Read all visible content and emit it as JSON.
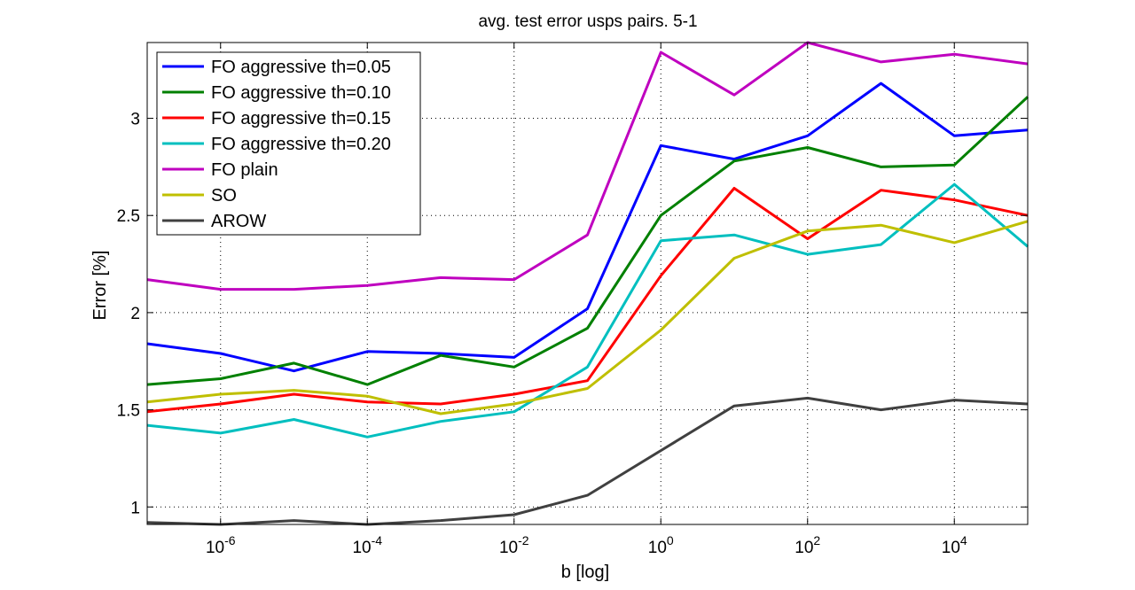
{
  "chart_data": {
    "type": "line",
    "title": "avg. test error usps pairs. 5-1",
    "xlabel": "b [log]",
    "ylabel": "Error [%]",
    "x_scale": "log",
    "x": [
      1e-07,
      1e-06,
      1e-05,
      0.0001,
      0.001,
      0.01,
      0.1,
      1.0,
      10.0,
      100.0,
      1000.0,
      10000.0,
      100000.0
    ],
    "xlim": [
      1e-07,
      100000.0
    ],
    "ylim": [
      0.91,
      3.39
    ],
    "x_ticks": [
      {
        "base": "10",
        "exp": "-6",
        "value": 1e-06
      },
      {
        "base": "10",
        "exp": "-4",
        "value": 0.0001
      },
      {
        "base": "10",
        "exp": "-2",
        "value": 0.01
      },
      {
        "base": "10",
        "exp": "0",
        "value": 1
      },
      {
        "base": "10",
        "exp": "2",
        "value": 100
      },
      {
        "base": "10",
        "exp": "4",
        "value": 10000
      }
    ],
    "y_ticks": [
      "1",
      "1.5",
      "2",
      "2.5",
      "3"
    ],
    "grid": true,
    "legend_position": "top-left",
    "series": [
      {
        "name": "FO aggressive th=0.05",
        "color": "#0000ff",
        "values": [
          1.84,
          1.79,
          1.7,
          1.8,
          1.79,
          1.77,
          2.02,
          2.86,
          2.79,
          2.91,
          3.18,
          2.91,
          2.94
        ]
      },
      {
        "name": "FO aggressive th=0.10",
        "color": "#008000",
        "values": [
          1.63,
          1.66,
          1.74,
          1.63,
          1.78,
          1.72,
          1.92,
          2.5,
          2.78,
          2.85,
          2.75,
          2.76,
          3.11
        ]
      },
      {
        "name": "FO aggressive th=0.15",
        "color": "#ff0000",
        "values": [
          1.49,
          1.53,
          1.58,
          1.54,
          1.53,
          1.58,
          1.65,
          2.19,
          2.64,
          2.38,
          2.63,
          2.58,
          2.5
        ]
      },
      {
        "name": "FO aggressive th=0.20",
        "color": "#00bfbf",
        "values": [
          1.42,
          1.38,
          1.45,
          1.36,
          1.44,
          1.49,
          1.72,
          2.37,
          2.4,
          2.3,
          2.35,
          2.66,
          2.34
        ]
      },
      {
        "name": "FO plain",
        "color": "#bf00bf",
        "values": [
          2.17,
          2.12,
          2.12,
          2.14,
          2.18,
          2.17,
          2.4,
          3.34,
          3.12,
          3.39,
          3.29,
          3.33,
          3.28
        ]
      },
      {
        "name": "SO",
        "color": "#bfbf00",
        "values": [
          1.54,
          1.58,
          1.6,
          1.57,
          1.48,
          1.53,
          1.61,
          1.91,
          2.28,
          2.42,
          2.45,
          2.36,
          2.47
        ]
      },
      {
        "name": "AROW",
        "color": "#404040",
        "values": [
          0.92,
          0.91,
          0.93,
          0.91,
          0.93,
          0.96,
          1.06,
          1.29,
          1.52,
          1.56,
          1.5,
          1.55,
          1.53
        ]
      }
    ]
  }
}
